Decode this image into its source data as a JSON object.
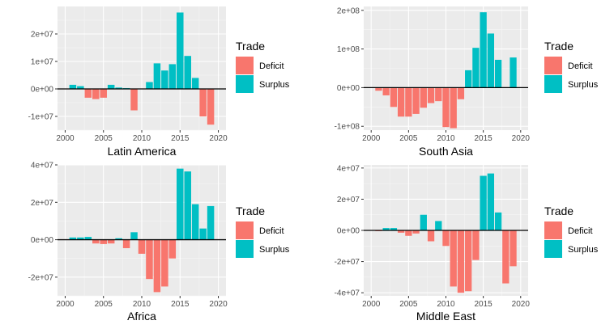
{
  "chart_data": [
    {
      "type": "bar",
      "xlabel": "Latin America",
      "xlim": [
        1999,
        2021
      ],
      "ylim": [
        -15000000,
        30000000
      ],
      "x_ticks": [
        {
          "value": 2000,
          "label": "2000"
        },
        {
          "value": 2005,
          "label": "2005"
        },
        {
          "value": 2010,
          "label": "2010"
        },
        {
          "value": 2015,
          "label": "2015"
        },
        {
          "value": 2020,
          "label": "2020"
        }
      ],
      "y_ticks": [
        {
          "value": -10000000,
          "label": "-1e+07"
        },
        {
          "value": 0,
          "label": "0e+00"
        },
        {
          "value": 10000000,
          "label": "1e+07"
        },
        {
          "value": 20000000,
          "label": "2e+07"
        }
      ],
      "x": [
        2001,
        2002,
        2003,
        2004,
        2005,
        2006,
        2007,
        2008,
        2009,
        2010,
        2011,
        2012,
        2013,
        2014,
        2015,
        2016,
        2017,
        2018,
        2019
      ],
      "values": [
        1500000,
        1000000,
        -3200000,
        -3700000,
        -3200000,
        1500000,
        500000,
        300000,
        -7800000,
        0,
        2500000,
        9300000,
        6700000,
        9000000,
        27800000,
        12000000,
        4000000,
        -10000000,
        -13000000
      ],
      "legend": {
        "title": "Trade",
        "items": [
          {
            "label": "Deficit",
            "color": "#F8766D"
          },
          {
            "label": "Surplus",
            "color": "#00BFC4"
          }
        ]
      }
    },
    {
      "type": "bar",
      "xlabel": "South Asia",
      "xlim": [
        1999,
        2021
      ],
      "ylim": [
        -110000000,
        210000000
      ],
      "x_ticks": [
        {
          "value": 2000,
          "label": "2000"
        },
        {
          "value": 2005,
          "label": "2005"
        },
        {
          "value": 2010,
          "label": "2010"
        },
        {
          "value": 2015,
          "label": "2015"
        },
        {
          "value": 2020,
          "label": "2020"
        }
      ],
      "y_ticks": [
        {
          "value": -100000000,
          "label": "-1e+08"
        },
        {
          "value": 0,
          "label": "0e+00"
        },
        {
          "value": 100000000,
          "label": "1e+08"
        },
        {
          "value": 200000000,
          "label": "2e+08"
        }
      ],
      "x": [
        2001,
        2002,
        2003,
        2004,
        2005,
        2006,
        2007,
        2008,
        2009,
        2010,
        2011,
        2012,
        2013,
        2014,
        2015,
        2016,
        2017,
        2018,
        2019
      ],
      "values": [
        -8000000,
        -20000000,
        -50000000,
        -75000000,
        -75000000,
        -68000000,
        -52000000,
        -40000000,
        -35000000,
        -102000000,
        -105000000,
        -30000000,
        45000000,
        103000000,
        195000000,
        140000000,
        72000000,
        0,
        78000000
      ],
      "legend": {
        "title": "Trade",
        "items": [
          {
            "label": "Deficit",
            "color": "#F8766D"
          },
          {
            "label": "Surplus",
            "color": "#00BFC4"
          }
        ]
      }
    },
    {
      "type": "bar",
      "xlabel": "Africa",
      "xlim": [
        1999,
        2021
      ],
      "ylim": [
        -30000000,
        40000000
      ],
      "x_ticks": [
        {
          "value": 2000,
          "label": "2000"
        },
        {
          "value": 2005,
          "label": "2005"
        },
        {
          "value": 2010,
          "label": "2010"
        },
        {
          "value": 2015,
          "label": "2015"
        },
        {
          "value": 2020,
          "label": "2020"
        }
      ],
      "y_ticks": [
        {
          "value": -20000000,
          "label": "-2e+07"
        },
        {
          "value": 0,
          "label": "0e+00"
        },
        {
          "value": 20000000,
          "label": "2e+07"
        },
        {
          "value": 40000000,
          "label": "4e+07"
        }
      ],
      "x": [
        2001,
        2002,
        2003,
        2004,
        2005,
        2006,
        2007,
        2008,
        2009,
        2010,
        2011,
        2012,
        2013,
        2014,
        2015,
        2016,
        2017,
        2018,
        2019
      ],
      "values": [
        1200000,
        1200000,
        1500000,
        -2000000,
        -2300000,
        -2000000,
        800000,
        -4500000,
        4000000,
        -7500000,
        -21000000,
        -28000000,
        -25000000,
        -10000000,
        38000000,
        36500000,
        19000000,
        6000000,
        18000000
      ],
      "legend": {
        "title": "Trade",
        "items": [
          {
            "label": "Deficit",
            "color": "#F8766D"
          },
          {
            "label": "Surplus",
            "color": "#00BFC4"
          }
        ]
      }
    },
    {
      "type": "bar",
      "xlabel": "Middle East",
      "xlim": [
        1999,
        2021
      ],
      "ylim": [
        -42000000,
        42000000
      ],
      "x_ticks": [
        {
          "value": 2000,
          "label": "2000"
        },
        {
          "value": 2005,
          "label": "2005"
        },
        {
          "value": 2010,
          "label": "2010"
        },
        {
          "value": 2015,
          "label": "2015"
        },
        {
          "value": 2020,
          "label": "2020"
        }
      ],
      "y_ticks": [
        {
          "value": -40000000,
          "label": "-4e+07"
        },
        {
          "value": -20000000,
          "label": "-2e+07"
        },
        {
          "value": 0,
          "label": "0e+00"
        },
        {
          "value": 20000000,
          "label": "2e+07"
        },
        {
          "value": 40000000,
          "label": "4e+07"
        }
      ],
      "x": [
        2001,
        2002,
        2003,
        2004,
        2005,
        2006,
        2007,
        2008,
        2009,
        2010,
        2011,
        2012,
        2013,
        2014,
        2015,
        2016,
        2017,
        2018,
        2019
      ],
      "values": [
        -500000,
        1500000,
        1500000,
        -1500000,
        -3500000,
        -2000000,
        10000000,
        -7000000,
        6000000,
        -10000000,
        -36000000,
        -40000000,
        -39000000,
        -19000000,
        35000000,
        36500000,
        11500000,
        -34000000,
        -23000000
      ],
      "legend": {
        "title": "Trade",
        "items": [
          {
            "label": "Deficit",
            "color": "#F8766D"
          },
          {
            "label": "Surplus",
            "color": "#00BFC4"
          }
        ]
      }
    }
  ]
}
